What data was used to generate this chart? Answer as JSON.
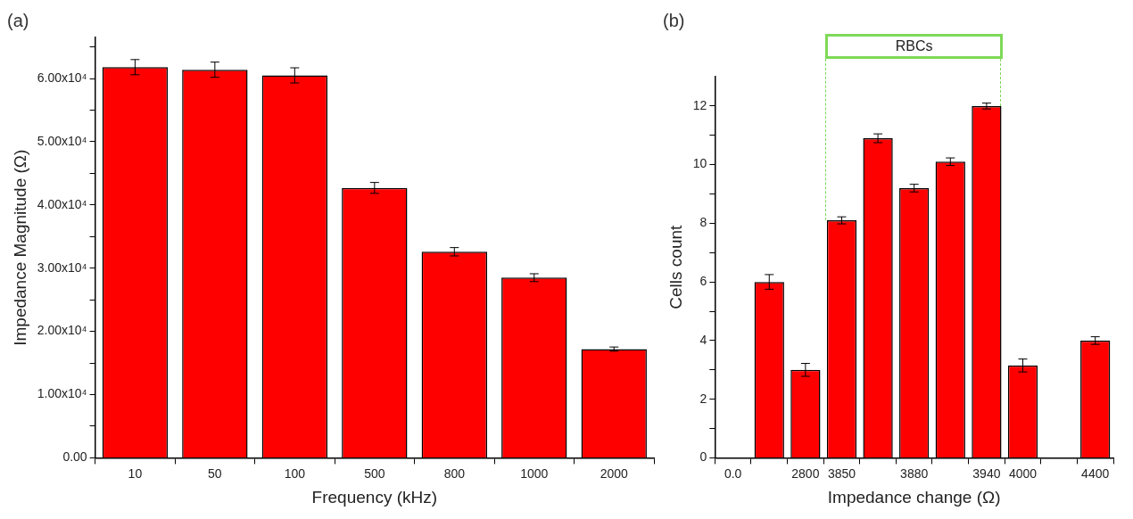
{
  "chart_data": [
    {
      "type": "bar",
      "title": "(a)",
      "xlabel": "Frequency (kHz)",
      "ylabel": "Impedance Magnitude (Ω)",
      "categories": [
        "10",
        "50",
        "100",
        "500",
        "800",
        "1000",
        "2000"
      ],
      "values": [
        61800,
        61400,
        60500,
        42700,
        32600,
        28500,
        17200
      ],
      "errors": [
        1200,
        1200,
        1200,
        860,
        660,
        620,
        330
      ],
      "color": "#ff0000",
      "ylim": [
        0,
        66500
      ],
      "yticks": [
        {
          "value": 0,
          "label": "0.00"
        },
        {
          "value": 5000,
          "label": null
        },
        {
          "value": 10000,
          "label": "1.00x10⁴"
        },
        {
          "value": 15000,
          "label": null
        },
        {
          "value": 20000,
          "label": "2.00x10⁴"
        },
        {
          "value": 25000,
          "label": null
        },
        {
          "value": 30000,
          "label": "3.00x10⁴"
        },
        {
          "value": 35000,
          "label": null
        },
        {
          "value": 40000,
          "label": "4.00x10⁴"
        },
        {
          "value": 45000,
          "label": null
        },
        {
          "value": 50000,
          "label": "5.00x10⁴"
        },
        {
          "value": 55000,
          "label": null
        },
        {
          "value": 60000,
          "label": "6.00x10⁴"
        },
        {
          "value": 65000,
          "label": null
        }
      ]
    },
    {
      "type": "bar",
      "title": "(b)",
      "xlabel": "Impedance change (Ω)",
      "ylabel": "Cells count",
      "categories": [
        "0.0",
        null,
        "2800",
        "3850",
        null,
        "3880",
        null,
        "3940",
        "4000",
        null,
        "4400"
      ],
      "values": [
        null,
        6.0,
        3.0,
        8.1,
        10.9,
        9.2,
        10.1,
        12.0,
        3.15,
        null,
        4.0
      ],
      "errors": [
        null,
        0.25,
        0.22,
        0.12,
        0.15,
        0.13,
        0.13,
        0.1,
        0.22,
        null,
        0.13
      ],
      "color": "#ff0000",
      "ylim": [
        0,
        13
      ],
      "yticks": [
        0,
        {
          "value": 1,
          "label": null
        },
        2,
        {
          "value": 3,
          "label": null
        },
        4,
        {
          "value": 5,
          "label": null
        },
        6,
        {
          "value": 7,
          "label": null
        },
        8,
        {
          "value": 9,
          "label": null
        },
        10,
        {
          "value": 11,
          "label": null
        },
        12
      ],
      "annotations": [
        "RBCs"
      ]
    }
  ]
}
